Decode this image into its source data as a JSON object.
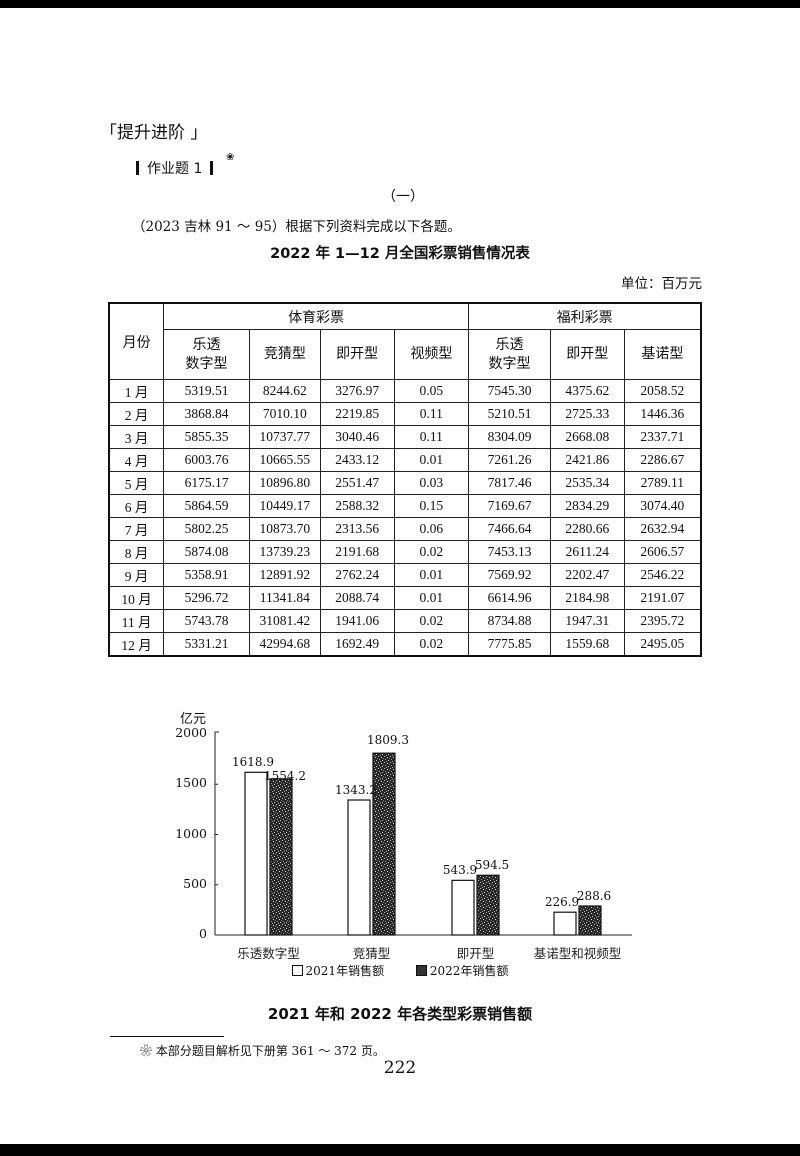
{
  "page": {
    "section_title": "提升进阶",
    "section_bracket_left": "「",
    "section_bracket_right": "」",
    "homework_title": "作业题 1",
    "flower_mark": "❀",
    "part_label": "（一）",
    "intro": "（2023  吉林  91 ～ 95）根据下列资料完成以下各题。",
    "table_title": "2022 年 1—12 月全国彩票销售情况表",
    "unit": "单位：百万元",
    "footnote": "❀ 本部分题目解析见下册第 361 ～ 372 页。",
    "page_number": "222"
  },
  "table": {
    "month_header": "月份",
    "group_headers": [
      "体育彩票",
      "福利彩票"
    ],
    "sports_columns": [
      [
        "乐透",
        "数字型"
      ],
      [
        "竞猜型"
      ],
      [
        "即开型"
      ],
      [
        "视频型"
      ]
    ],
    "welfare_columns": [
      [
        "乐透",
        "数字型"
      ],
      [
        "即开型"
      ],
      [
        "基诺型"
      ]
    ],
    "rows": [
      {
        "month": "1 月",
        "values": [
          "5319.51",
          "8244.62",
          "3276.97",
          "0.05",
          "7545.30",
          "4375.62",
          "2058.52"
        ]
      },
      {
        "month": "2 月",
        "values": [
          "3868.84",
          "7010.10",
          "2219.85",
          "0.11",
          "5210.51",
          "2725.33",
          "1446.36"
        ]
      },
      {
        "month": "3 月",
        "values": [
          "5855.35",
          "10737.77",
          "3040.46",
          "0.11",
          "8304.09",
          "2668.08",
          "2337.71"
        ]
      },
      {
        "month": "4 月",
        "values": [
          "6003.76",
          "10665.55",
          "2433.12",
          "0.01",
          "7261.26",
          "2421.86",
          "2286.67"
        ]
      },
      {
        "month": "5 月",
        "values": [
          "6175.17",
          "10896.80",
          "2551.47",
          "0.03",
          "7817.46",
          "2535.34",
          "2789.11"
        ]
      },
      {
        "month": "6 月",
        "values": [
          "5864.59",
          "10449.17",
          "2588.32",
          "0.15",
          "7169.67",
          "2834.29",
          "3074.40"
        ]
      },
      {
        "month": "7 月",
        "values": [
          "5802.25",
          "10873.70",
          "2313.56",
          "0.06",
          "7466.64",
          "2280.66",
          "2632.94"
        ]
      },
      {
        "month": "8 月",
        "values": [
          "5874.08",
          "13739.23",
          "2191.68",
          "0.02",
          "7453.13",
          "2611.24",
          "2606.57"
        ]
      },
      {
        "month": "9 月",
        "values": [
          "5358.91",
          "12891.92",
          "2762.24",
          "0.01",
          "7569.92",
          "2202.47",
          "2546.22"
        ]
      },
      {
        "month": "10 月",
        "values": [
          "5296.72",
          "11341.84",
          "2088.74",
          "0.01",
          "6614.96",
          "2184.98",
          "2191.07"
        ]
      },
      {
        "month": "11 月",
        "values": [
          "5743.78",
          "31081.42",
          "1941.06",
          "0.02",
          "8734.88",
          "1947.31",
          "2395.72"
        ]
      },
      {
        "month": "12 月",
        "values": [
          "5331.21",
          "42994.68",
          "1692.49",
          "0.02",
          "7775.85",
          "1559.68",
          "2495.05"
        ]
      }
    ]
  },
  "chart_data": {
    "type": "bar",
    "title": "2021 年和 2022 年各类型彩票销售额",
    "ylabel": "亿元",
    "xlabel": "",
    "ylim": [
      0,
      2000
    ],
    "yticks": [
      "0",
      "500",
      "1000",
      "1500",
      "2000"
    ],
    "grid": false,
    "legend_position": "bottom",
    "categories": [
      "乐透数字型",
      "竞猜型",
      "即开型",
      "基诺型和视频型"
    ],
    "series": [
      {
        "name": "2021年销售额",
        "values": [
          1618.9,
          1343.2,
          543.9,
          226.9
        ],
        "labels": [
          "1618.9",
          "1343.2",
          "543.9",
          "226.9"
        ],
        "fill": "#ffffff"
      },
      {
        "name": "2022年销售额",
        "values": [
          1554.2,
          1809.3,
          594.5,
          288.6
        ],
        "labels": [
          "1554.2",
          "1809.3",
          "594.5",
          "288.6"
        ],
        "fill": "#2e2e2e"
      }
    ]
  }
}
